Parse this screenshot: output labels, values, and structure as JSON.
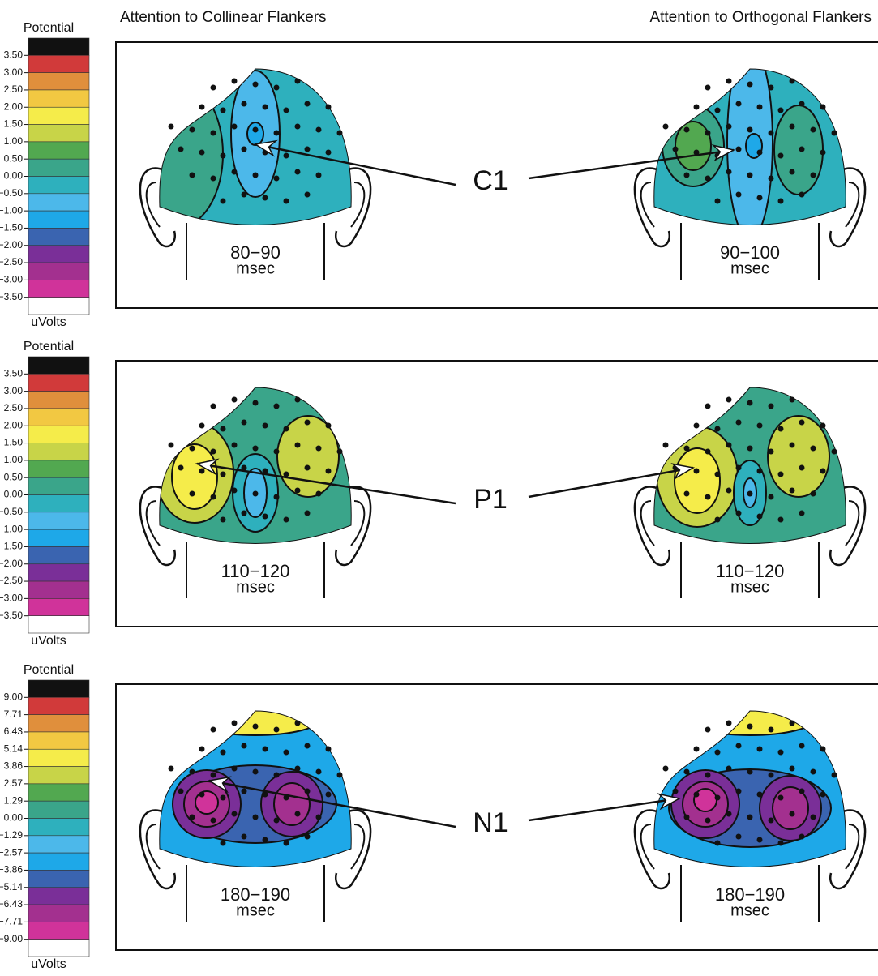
{
  "headers": {
    "left": "Attention to Collinear Flankers",
    "right": "Attention to Orthogonal Flankers"
  },
  "colors": [
    "#111111",
    "#d13a3a",
    "#e08f3c",
    "#f2c842",
    "#f5ec4a",
    "#c8d448",
    "#52a850",
    "#3aa58a",
    "#2eb0bd",
    "#4cb8ea",
    "#1ea8e8",
    "#3a64b0",
    "#7a2f98",
    "#a3308f",
    "#d0339a",
    "#ffffff"
  ],
  "rows": [
    {
      "colorbar": {
        "title": "Potential",
        "ticks": [
          "3.50",
          "3.00",
          "2.50",
          "2.00",
          "1.50",
          "1.00",
          "0.50",
          "0.00",
          "−0.50",
          "−1.00",
          "−1.50",
          "−2.00",
          "−2.50",
          "−3.00",
          "−3.50"
        ],
        "unit": "uVolts"
      },
      "component": "C1",
      "left": {
        "time": "80−90",
        "unit": "msec"
      },
      "right": {
        "time": "90−100",
        "unit": "msec"
      }
    },
    {
      "colorbar": {
        "title": "Potential",
        "ticks": [
          "3.50",
          "3.00",
          "2.50",
          "2.00",
          "1.50",
          "1.00",
          "0.50",
          "0.00",
          "−0.50",
          "−1.00",
          "−1.50",
          "−2.00",
          "−2.50",
          "−3.00",
          "−3.50"
        ],
        "unit": "uVolts"
      },
      "component": "P1",
      "left": {
        "time": "110−120",
        "unit": "msec"
      },
      "right": {
        "time": "110−120",
        "unit": "msec"
      }
    },
    {
      "colorbar": {
        "title": "Potential",
        "ticks": [
          "9.00",
          "7.71",
          "6.43",
          "5.14",
          "3.86",
          "2.57",
          "1.29",
          "0.00",
          "−1.29",
          "−2.57",
          "−3.86",
          "−5.14",
          "−6.43",
          "−7.71",
          "−9.00"
        ],
        "unit": "uVolts"
      },
      "component": "N1",
      "left": {
        "time": "180−190",
        "unit": "msec"
      },
      "right": {
        "time": "180−190",
        "unit": "msec"
      }
    }
  ]
}
